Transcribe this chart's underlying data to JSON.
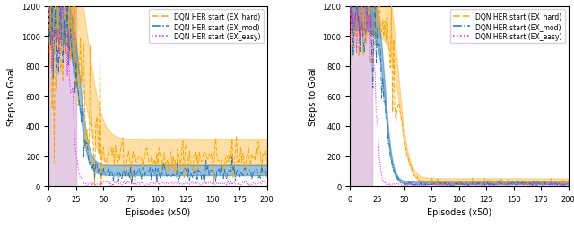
{
  "xlabel": "Episodes (x50)",
  "ylabel": "Steps to Goal",
  "xlim": [
    0,
    200
  ],
  "ylim": [
    0,
    1200
  ],
  "yticks": [
    0,
    200,
    400,
    600,
    800,
    1000,
    1200
  ],
  "xticks": [
    0,
    25,
    50,
    75,
    100,
    125,
    150,
    175,
    200
  ],
  "color_hard": "#FFA500",
  "color_mod": "#1f77b4",
  "color_easy": "#FF00FF",
  "fill_hard_alpha": 0.35,
  "fill_mod_alpha": 0.45,
  "bg_purple": "#C080C0",
  "bg_purple_alpha": 0.4,
  "legend_labels": [
    "DQN HER start (EX_hard)",
    "DQN HER start (EX_mod)",
    "DQN HER start (EX_easy)"
  ]
}
